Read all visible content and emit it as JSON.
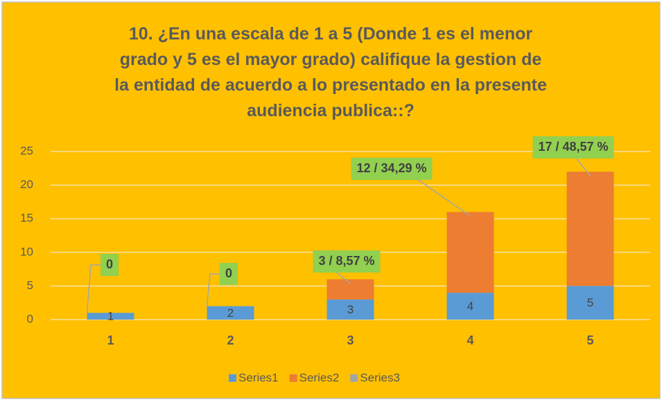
{
  "chart_data": {
    "type": "stacked_bar",
    "title": "10.  ¿En una escala de 1 a 5 (Donde 1 es el  menor grado y 5 es el mayor grado) califique la gestion de la entidad de acuerdo a lo presentado en la presente audiencia publica::?",
    "categories": [
      "1",
      "2",
      "3",
      "4",
      "5"
    ],
    "series": [
      {
        "name": "Series1",
        "color": "#5b9bd5",
        "values": [
          1,
          2,
          3,
          4,
          5
        ]
      },
      {
        "name": "Series2",
        "color": "#ed7d31",
        "values": [
          0,
          0,
          3,
          12,
          17
        ],
        "value_labels": [
          "0",
          "0",
          "3  / 8,57 %",
          "12 / 34,29 %",
          "17 / 48,57 %"
        ]
      },
      {
        "name": "Series3",
        "color": "#a5a5a5",
        "values": [
          0,
          0,
          0,
          0,
          0
        ]
      }
    ],
    "ylim": [
      0,
      25
    ],
    "yticks": [
      0,
      5,
      10,
      15,
      20,
      25
    ],
    "grid": true,
    "legend": "bottom"
  }
}
